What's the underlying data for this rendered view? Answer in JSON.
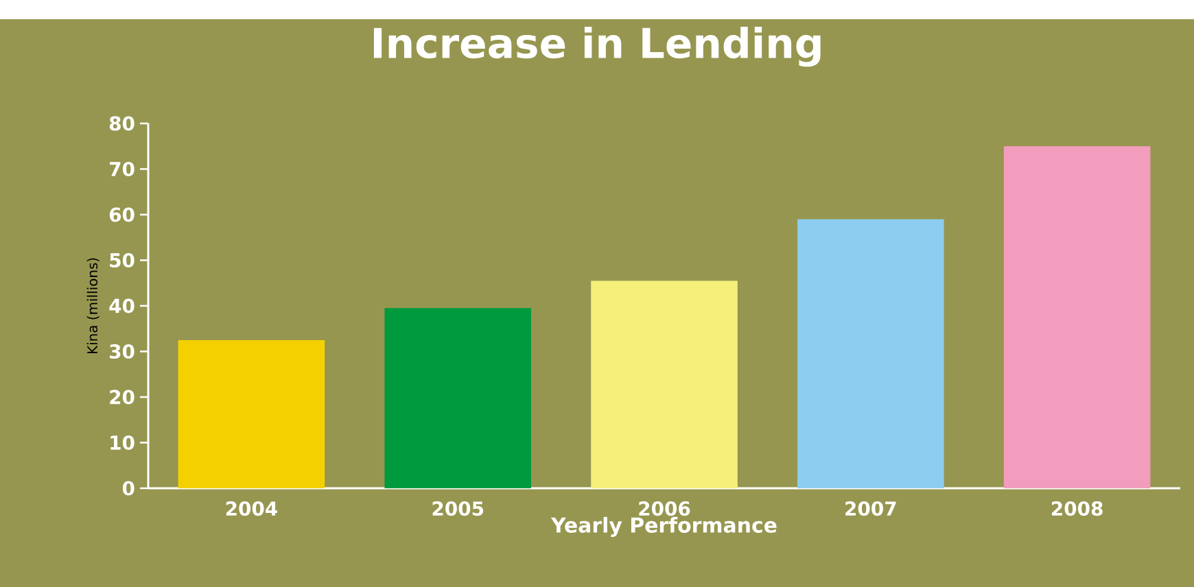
{
  "chart_data": {
    "type": "bar",
    "title": "Increase in Lending",
    "xlabel": "Yearly Performance",
    "ylabel": "Kina (millions)",
    "categories": [
      "2004",
      "2005",
      "2006",
      "2007",
      "2008"
    ],
    "values": [
      32.5,
      39.5,
      45.5,
      59,
      75
    ],
    "colors": [
      "#f5d000",
      "#009a3e",
      "#f4f07a",
      "#8ccdf0",
      "#f29dbd"
    ],
    "ylim": [
      0,
      80
    ],
    "yticks": [
      0,
      10,
      20,
      30,
      40,
      50,
      60,
      70,
      80
    ],
    "grid": false
  }
}
